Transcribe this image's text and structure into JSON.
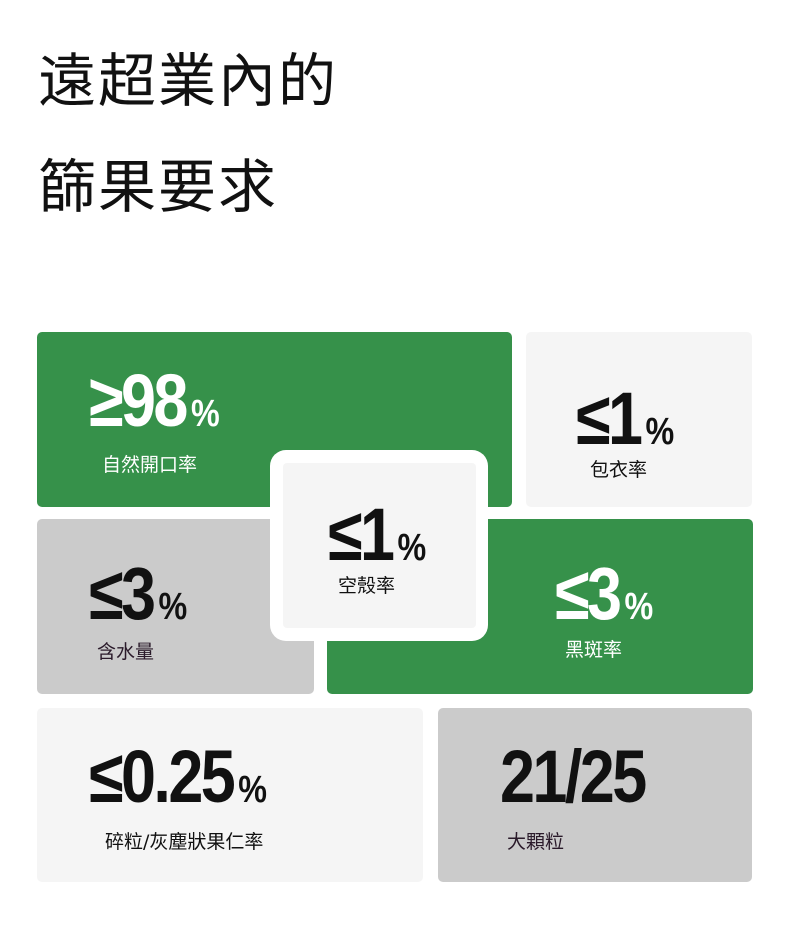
{
  "title": {
    "line1": "遠超業內的",
    "line2": "篩果要求"
  },
  "colors": {
    "green": "#36914a",
    "light": "#f5f5f5",
    "gray": "#cbcbcb"
  },
  "stats": [
    {
      "value": "≥98",
      "unit": "%",
      "label": "自然開口率"
    },
    {
      "value": "≤1",
      "unit": "%",
      "label": "包衣率"
    },
    {
      "value": "≤3",
      "unit": "%",
      "label": "含水量"
    },
    {
      "value": "≤3",
      "unit": "%",
      "label": "黑斑率"
    },
    {
      "value": "≤1",
      "unit": "%",
      "label": "空殼率"
    },
    {
      "value": "≤0.25",
      "unit": "%",
      "label": "碎粒/灰塵狀果仁率"
    },
    {
      "value": "21/25",
      "label": "大顆粒"
    }
  ]
}
